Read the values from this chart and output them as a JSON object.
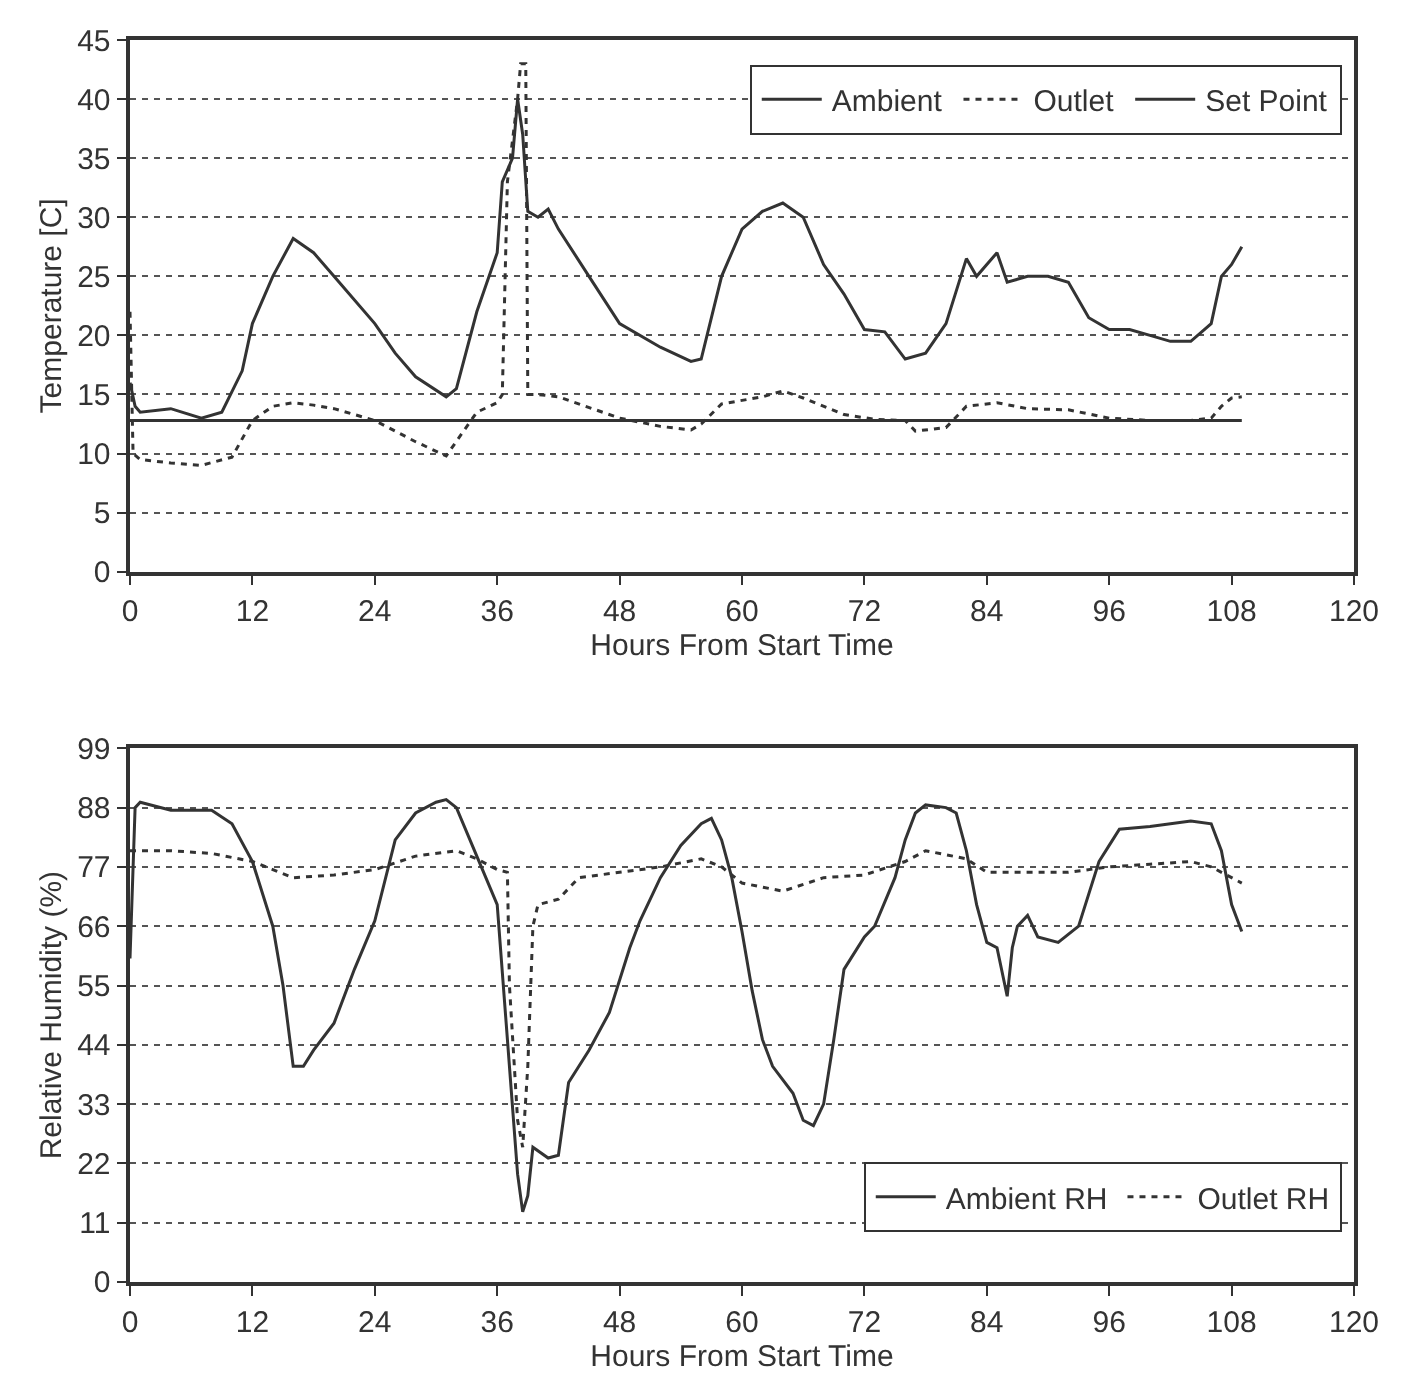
{
  "chart_data": [
    {
      "type": "line",
      "xlabel": "Hours From Start Time",
      "ylabel": "Temperature [C]",
      "xlim": [
        0,
        120
      ],
      "xticks": [
        0,
        12,
        24,
        36,
        48,
        60,
        72,
        84,
        96,
        108,
        120
      ],
      "ylim": [
        0,
        45
      ],
      "yticks": [
        0,
        5,
        10,
        15,
        20,
        25,
        30,
        35,
        40,
        45
      ],
      "grid": "y",
      "legend": "top right",
      "series": [
        {
          "name": "Ambient",
          "color": "#333333",
          "line_style": "solid",
          "x": [
            0,
            0.5,
            1,
            4,
            7,
            9,
            11,
            12,
            14,
            16,
            18,
            20,
            24,
            26,
            28,
            31,
            32,
            34,
            36,
            36.5,
            37.5,
            38,
            38.5,
            39,
            40,
            41,
            42,
            45,
            48,
            52,
            55,
            56,
            58,
            60,
            62,
            64,
            66,
            68,
            70,
            72,
            74,
            76,
            78,
            80,
            82,
            83,
            85,
            86,
            88,
            90,
            92,
            94,
            96,
            98,
            100,
            102,
            104,
            106,
            107,
            108,
            109
          ],
          "values": [
            16,
            14,
            13.5,
            13.8,
            13,
            13.5,
            17,
            21,
            25,
            28.2,
            27,
            25,
            21,
            18.5,
            16.5,
            14.8,
            15.5,
            22,
            27,
            33,
            35,
            40,
            37,
            30.5,
            30,
            30.7,
            29,
            25,
            21,
            19,
            17.8,
            18,
            25,
            29,
            30.5,
            31.2,
            30,
            26,
            23.5,
            20.5,
            20.3,
            18,
            18.5,
            21,
            26.5,
            25,
            27,
            24.5,
            25,
            25,
            24.5,
            21.5,
            20.5,
            20.5,
            20,
            19.5,
            19.5,
            21,
            25,
            26,
            27.5
          ]
        },
        {
          "name": "Outlet",
          "color": "#333333",
          "line_style": "dotted",
          "x": [
            0,
            0.3,
            1,
            4,
            7,
            10,
            12,
            14,
            16,
            18,
            20,
            24,
            28,
            31,
            34,
            36,
            36.5,
            37,
            38,
            38.3,
            38.8,
            39,
            40,
            42,
            48,
            52,
            55,
            56,
            58,
            62,
            64,
            66,
            70,
            73,
            76,
            77,
            80,
            82,
            85,
            88,
            92,
            96,
            100,
            104,
            106,
            107,
            108,
            109
          ],
          "values": [
            22,
            10,
            9.5,
            9.2,
            9,
            9.7,
            12.8,
            14,
            14.3,
            14.1,
            13.8,
            12.8,
            11,
            9.8,
            13.5,
            14.3,
            15,
            33,
            40,
            43,
            43,
            15,
            15,
            14.8,
            13,
            12.3,
            12,
            12.5,
            14.2,
            14.8,
            15.3,
            14.7,
            13.3,
            12.9,
            12.8,
            11.9,
            12.2,
            14,
            14.3,
            13.8,
            13.7,
            13,
            12.8,
            12.8,
            13,
            14,
            14.7,
            14.8
          ]
        },
        {
          "name": "Set Point",
          "color": "#333333",
          "line_style": "solid",
          "x": [
            0,
            109
          ],
          "values": [
            12.8,
            12.8
          ]
        }
      ]
    },
    {
      "type": "line",
      "xlabel": "Hours From Start Time",
      "ylabel": "Relative Humidity (%)",
      "xlim": [
        0,
        120
      ],
      "xticks": [
        0,
        12,
        24,
        36,
        48,
        60,
        72,
        84,
        96,
        108,
        120
      ],
      "ylim": [
        0,
        99
      ],
      "yticks": [
        0,
        11,
        22,
        33,
        44,
        55,
        66,
        77,
        88,
        99
      ],
      "grid": "y",
      "legend": "bottom right",
      "series": [
        {
          "name": "Ambient RH",
          "color": "#333333",
          "line_style": "solid",
          "x": [
            0,
            0.5,
            1,
            4,
            8,
            10,
            12,
            14,
            15,
            16,
            17,
            18,
            20,
            22,
            24,
            26,
            28,
            30,
            31,
            32,
            34,
            36,
            37,
            38,
            38.5,
            39,
            39.5,
            41,
            42,
            43,
            45,
            47,
            49,
            50,
            52,
            54,
            56,
            57,
            58,
            59,
            60,
            61,
            62,
            63,
            65,
            66,
            67,
            68,
            69,
            70,
            72,
            73,
            75,
            76,
            77,
            78,
            80,
            81,
            82,
            83,
            84,
            85,
            86,
            86.5,
            87,
            88,
            89,
            91,
            93,
            95,
            96,
            97,
            100,
            104,
            106,
            107,
            108,
            109
          ],
          "values": [
            60,
            88,
            89,
            87.5,
            87.5,
            85,
            78,
            66,
            55,
            40,
            40,
            43,
            48,
            58,
            67,
            82,
            87,
            89,
            89.5,
            88,
            79,
            70,
            45,
            20,
            13,
            16,
            25,
            23,
            23.5,
            37,
            43,
            50,
            62,
            67,
            75,
            81,
            85,
            86,
            82,
            75,
            65,
            54,
            45,
            40,
            35,
            30,
            29,
            33,
            45,
            58,
            64,
            66,
            75,
            82,
            87,
            88.5,
            88,
            87,
            80,
            70,
            63,
            62,
            53,
            62,
            66,
            68,
            64,
            63,
            66,
            78,
            81,
            84,
            84.5,
            85.5,
            85,
            80,
            70,
            65
          ]
        },
        {
          "name": "Outlet RH",
          "color": "#333333",
          "line_style": "dotted",
          "x": [
            0,
            4,
            8,
            12,
            14,
            16,
            20,
            24,
            28,
            32,
            34,
            36,
            37,
            37.2,
            38,
            38.5,
            39,
            39.5,
            40,
            42,
            44,
            48,
            52,
            56,
            58,
            60,
            64,
            68,
            72,
            76,
            78,
            82,
            84,
            88,
            92,
            96,
            100,
            104,
            106,
            108,
            109
          ],
          "values": [
            80,
            80,
            79.5,
            78,
            76.5,
            75,
            75.5,
            76.5,
            79,
            80,
            78.5,
            76.5,
            76,
            55,
            30,
            25,
            40,
            66,
            70,
            71,
            75,
            76,
            77,
            78.5,
            77,
            74,
            72.5,
            75,
            75.5,
            78,
            80,
            78.5,
            76,
            76,
            76,
            77,
            77.5,
            78,
            77,
            75,
            74
          ]
        }
      ]
    }
  ]
}
